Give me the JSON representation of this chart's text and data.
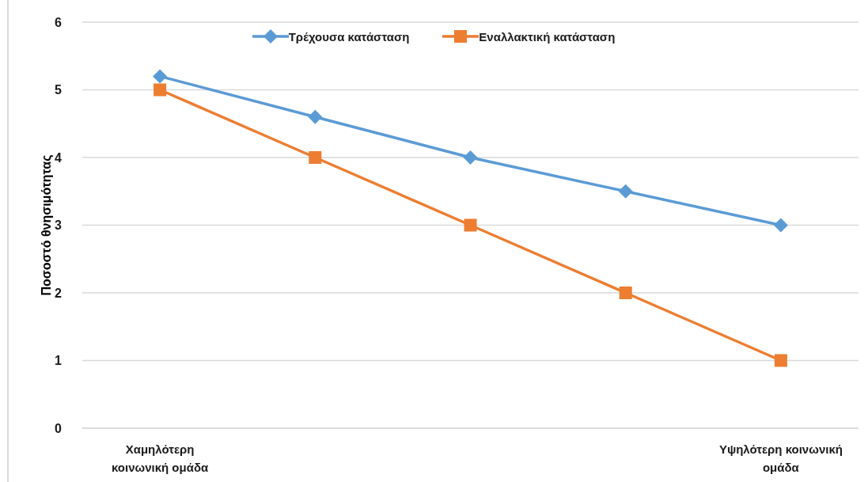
{
  "chart_data": {
    "type": "line",
    "categories": [
      "Χαμηλότερη κοινωνική ομάδα",
      null,
      null,
      null,
      "Υψηλότερη κοινωνική ομάδα"
    ],
    "series": [
      {
        "name": "Τρέχουσα κατάσταση",
        "color": "#5b9bd5",
        "marker": "diamond",
        "values": [
          5.2,
          4.6,
          4.0,
          3.5,
          3.0
        ]
      },
      {
        "name": "Εναλλακτική κατάσταση",
        "color": "#ed7d31",
        "marker": "square",
        "values": [
          5,
          4,
          3,
          2,
          1
        ]
      }
    ],
    "ylabel": "Ποσοστό θνησιμότητας",
    "ylim": [
      0,
      6
    ],
    "yticks": [
      0,
      1,
      2,
      3,
      4,
      5,
      6
    ],
    "grid": "y",
    "legend": "top",
    "line_style": "solid"
  }
}
